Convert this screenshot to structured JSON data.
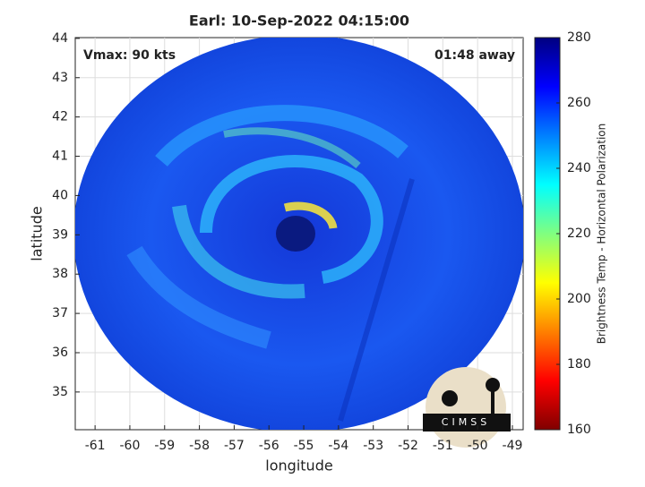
{
  "chart_data": {
    "type": "image",
    "title": "Earl: 10-Sep-2022 04:15:00",
    "annotations": [
      "Vmax: 90 kts",
      "01:48 away"
    ],
    "x_label": "longitude",
    "y_label": "latitude",
    "xlim": [
      -61.57,
      -48.69
    ],
    "xticks": [
      -61,
      -60,
      -59,
      -58,
      -57,
      -56,
      -55,
      -54,
      -53,
      -52,
      -51,
      -50,
      -49
    ],
    "ylim": [
      34.04,
      44.02
    ],
    "yticks": [
      35,
      36,
      37,
      38,
      39,
      40,
      41,
      42,
      43,
      44
    ],
    "grid": true,
    "colorbar": {
      "label": "Brightness Temp - Horizontal Polarization",
      "lim": [
        160,
        280
      ],
      "ticks": [
        160,
        180,
        200,
        220,
        240,
        260,
        280
      ],
      "colormap": [
        "#800000",
        "#ff0000",
        "#ff8000",
        "#ffff00",
        "#80ff80",
        "#00ffff",
        "#0080ff",
        "#0000ff",
        "#000080"
      ]
    },
    "logo": "CIMSS"
  }
}
